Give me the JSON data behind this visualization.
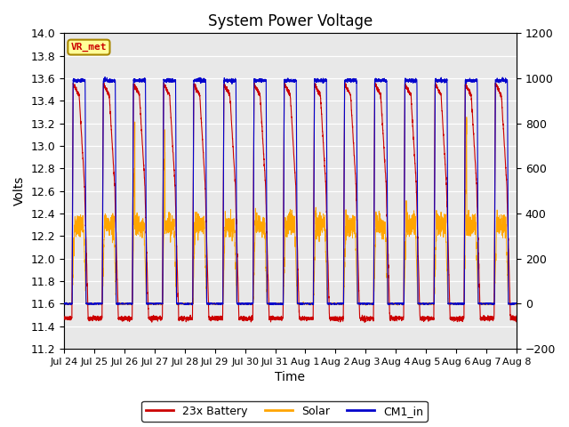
{
  "title": "System Power Voltage",
  "xlabel": "Time",
  "ylabel_left": "Volts",
  "ylim_left": [
    11.2,
    14.0
  ],
  "ylim_right": [
    -200,
    1200
  ],
  "yticks_left": [
    11.2,
    11.4,
    11.6,
    11.8,
    12.0,
    12.2,
    12.4,
    12.6,
    12.8,
    13.0,
    13.2,
    13.4,
    13.6,
    13.8,
    14.0
  ],
  "yticks_right": [
    -200,
    0,
    200,
    400,
    600,
    800,
    1000,
    1200
  ],
  "xtick_labels": [
    "Jul 24",
    "Jul 25",
    "Jul 26",
    "Jul 27",
    "Jul 28",
    "Jul 29",
    "Jul 30",
    "Jul 31",
    "Aug 1",
    "Aug 2",
    "Aug 3",
    "Aug 4",
    "Aug 5",
    "Aug 6",
    "Aug 7",
    "Aug 8"
  ],
  "n_days": 15,
  "battery_color": "#cc0000",
  "solar_color": "#ffa500",
  "cm1_color": "#0000cc",
  "legend_labels": [
    "23x Battery",
    "Solar",
    "CM1_in"
  ],
  "annotation_text": "VR_met",
  "annotation_bg": "#ffff99",
  "annotation_border": "#aa8800",
  "annotation_text_color": "#cc0000",
  "plot_bg_color": "#e8e8e8",
  "title_fontsize": 12,
  "axis_fontsize": 10,
  "tick_fontsize": 9
}
